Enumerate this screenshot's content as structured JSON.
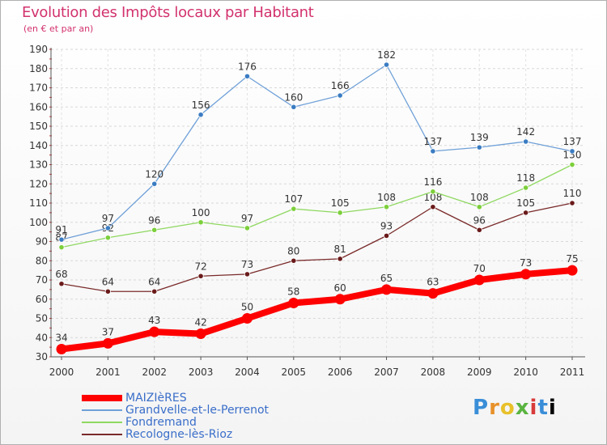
{
  "title": "Evolution des Impôts locaux par Habitant",
  "subtitle": "(en € et par an)",
  "logo": "Proxiti",
  "chart_data": {
    "type": "line",
    "x": [
      "2000",
      "2001",
      "2002",
      "2003",
      "2004",
      "2005",
      "2006",
      "2007",
      "2008",
      "2009",
      "2010",
      "2011"
    ],
    "ylim": [
      30,
      190
    ],
    "yticks": [
      30,
      40,
      50,
      60,
      70,
      80,
      90,
      100,
      110,
      120,
      130,
      140,
      150,
      160,
      170,
      180,
      190
    ],
    "grid": true,
    "legend_position": "bottom-left",
    "series": [
      {
        "name": "MAIZIèRES",
        "color": "#ff0000",
        "values": [
          34,
          37,
          43,
          42,
          50,
          58,
          60,
          65,
          63,
          70,
          73,
          75
        ]
      },
      {
        "name": "Grandvelle-et-le-Perrenot",
        "color": "#6fa0d8",
        "values": [
          91,
          97,
          120,
          156,
          176,
          160,
          166,
          182,
          137,
          139,
          142,
          137
        ]
      },
      {
        "name": "Fondremand",
        "color": "#8fd860",
        "values": [
          87,
          92,
          96,
          100,
          97,
          107,
          105,
          108,
          116,
          108,
          118,
          130
        ]
      },
      {
        "name": "Recologne-lès-Rioz",
        "color": "#7a2a2a",
        "values": [
          68,
          64,
          64,
          72,
          73,
          80,
          81,
          93,
          108,
          96,
          105,
          110
        ]
      }
    ]
  }
}
